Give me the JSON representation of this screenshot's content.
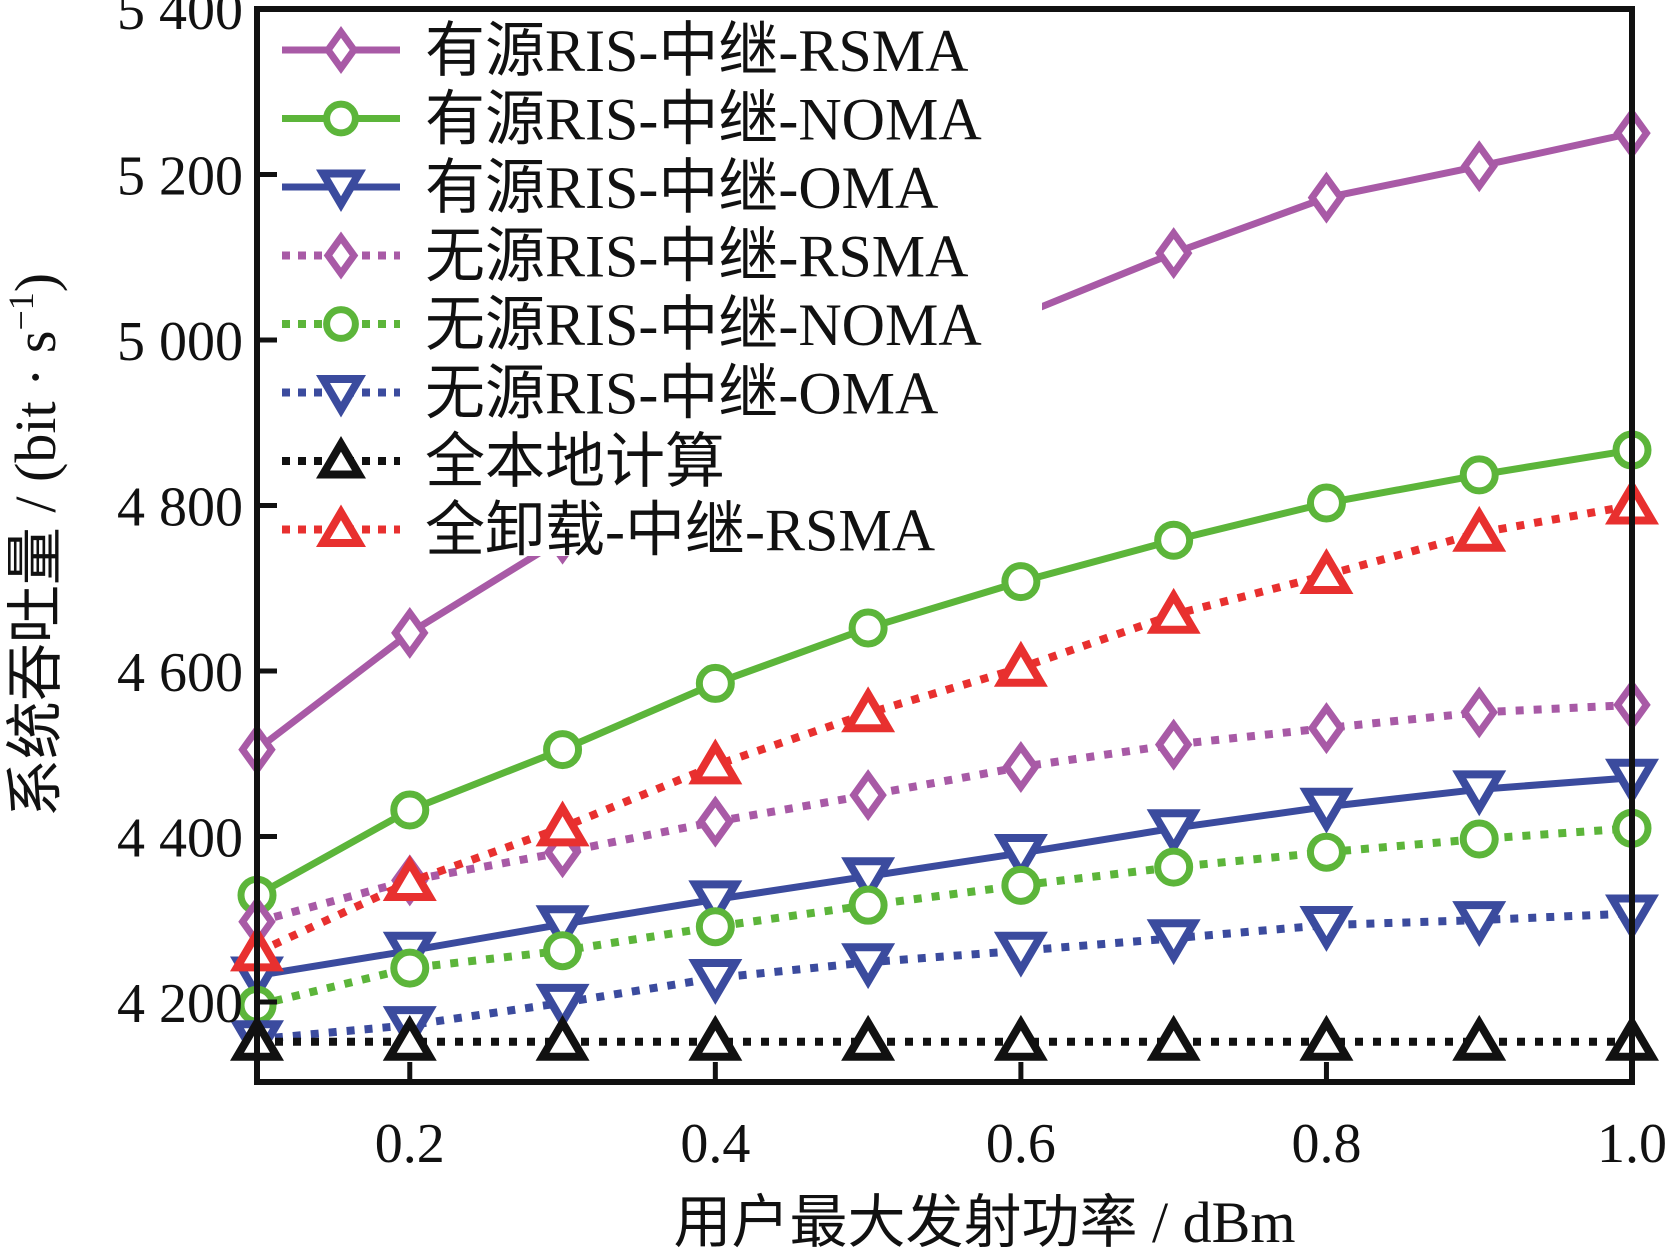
{
  "chart_data": {
    "type": "line",
    "title": "",
    "xlabel": "用户最大发射功率 / dBm",
    "ylabel_main": "系统吞吐量 / (bit · s",
    "ylabel_sup": "−1",
    "ylabel_close": ")",
    "ylabel": "系统吞吐量 / (bit · s⁻¹)",
    "xlim": [
      0.1,
      1.0
    ],
    "ylim": [
      4200,
      5400
    ],
    "y_extent_bottom": 4100,
    "xticks": [
      0.2,
      0.4,
      0.6,
      0.8,
      1.0
    ],
    "xtick_labels": [
      "0.2",
      "0.4",
      "0.6",
      "0.8",
      "1.0"
    ],
    "yticks": [
      4200,
      4400,
      4600,
      4800,
      5000,
      5200,
      5400
    ],
    "ytick_labels": [
      "4 200",
      "4 400",
      "4 600",
      "4 800",
      "5 000",
      "5 200",
      "5 400"
    ],
    "grid": false,
    "legend_position": "top-left",
    "x": [
      0.1,
      0.2,
      0.3,
      0.4,
      0.5,
      0.6,
      0.7,
      0.8,
      0.9,
      1.0
    ],
    "series": [
      {
        "name": "有源RIS-中继-RSMA",
        "color": "#a85aa6",
        "style": "solid",
        "marker": "diamond",
        "values": [
          4505,
          4646,
          4760,
          4855,
          4945,
          5030,
          5105,
          5172,
          5210,
          5250
        ]
      },
      {
        "name": "有源RIS-中继-NOMA",
        "color": "#5cb53a",
        "style": "solid",
        "marker": "circle",
        "values": [
          4329,
          4432,
          4505,
          4585,
          4652,
          4708,
          4758,
          4803,
          4837,
          4867
        ]
      },
      {
        "name": "有源RIS-中继-OMA",
        "color": "#3b4b9e",
        "style": "solid",
        "marker": "triangle-down",
        "values": [
          4232,
          4262,
          4294,
          4324,
          4352,
          4380,
          4410,
          4436,
          4457,
          4471
        ]
      },
      {
        "name": "无源RIS-中继-RSMA",
        "color": "#a85aa6",
        "style": "dotted",
        "marker": "diamond",
        "values": [
          4297,
          4347,
          4381,
          4418,
          4450,
          4484,
          4511,
          4531,
          4550,
          4559
        ]
      },
      {
        "name": "无源RIS-中继-NOMA",
        "color": "#5cb53a",
        "style": "dotted",
        "marker": "circle",
        "values": [
          4196,
          4241,
          4262,
          4291,
          4317,
          4341,
          4363,
          4381,
          4397,
          4410
        ]
      },
      {
        "name": "无源RIS-中继-OMA",
        "color": "#3b4b9e",
        "style": "dotted",
        "marker": "triangle-down",
        "values": [
          4155,
          4172,
          4199,
          4229,
          4248,
          4262,
          4277,
          4293,
          4299,
          4307
        ]
      },
      {
        "name": "全本地计算",
        "color": "#111111",
        "style": "dotted",
        "marker": "triangle-up",
        "values": [
          4152,
          4152,
          4152,
          4152,
          4152,
          4152,
          4152,
          4152,
          4152,
          4152
        ]
      },
      {
        "name": "全卸载-中继-RSMA",
        "color": "#e8302f",
        "style": "dotted",
        "marker": "triangle-up",
        "values": [
          4260,
          4345,
          4411,
          4486,
          4549,
          4604,
          4668,
          4716,
          4767,
          4800
        ]
      }
    ]
  }
}
